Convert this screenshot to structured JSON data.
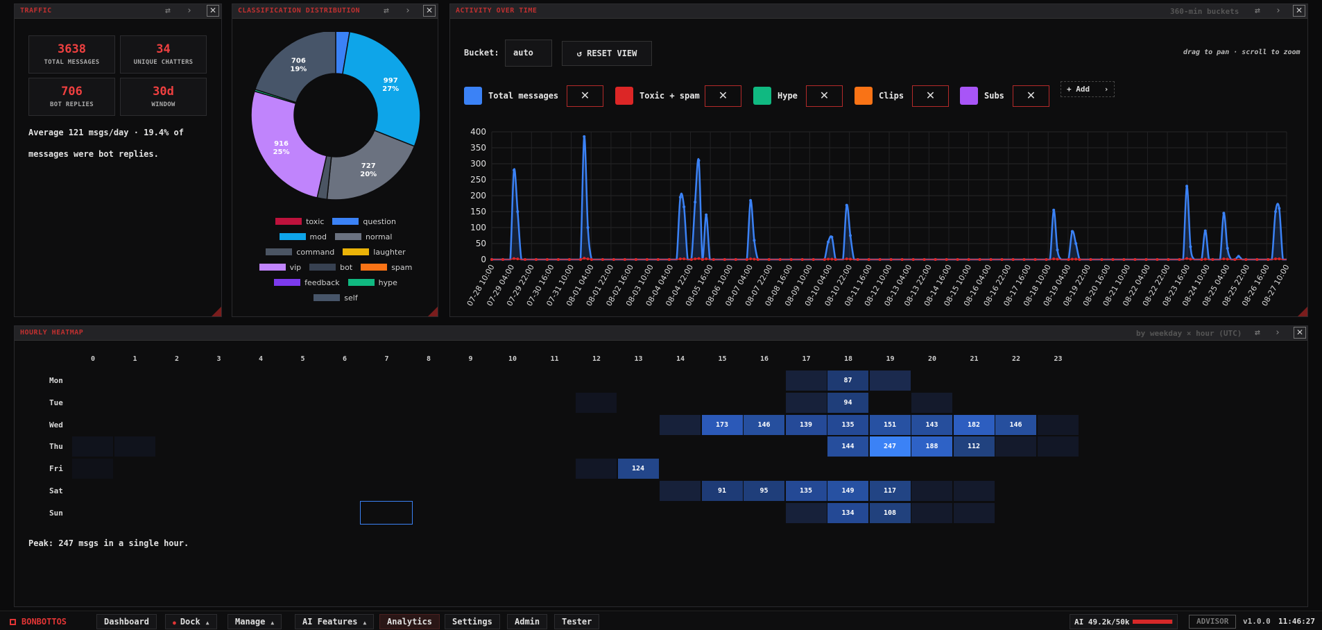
{
  "traffic": {
    "title": "TRAFFIC",
    "stats": [
      {
        "value": "3638",
        "label": "TOTAL MESSAGES"
      },
      {
        "value": "34",
        "label": "UNIQUE CHATTERS"
      },
      {
        "value": "706",
        "label": "BOT REPLIES"
      },
      {
        "value": "30d",
        "label": "WINDOW"
      }
    ],
    "summary_line1": "Average 121 msgs/day · 19.4% of",
    "summary_line2": "messages were bot replies."
  },
  "classification": {
    "title": "CLASSIFICATION DISTRIBUTION",
    "slices": [
      {
        "name": "question",
        "value": 93,
        "color": "#3b82f6",
        "label": ""
      },
      {
        "name": "mod",
        "value": 997,
        "color": "#0ea5e9",
        "label": "997",
        "pct": "27%"
      },
      {
        "name": "normal",
        "value": 727,
        "color": "#6b7280",
        "label": "727",
        "pct": "20%"
      },
      {
        "name": "command",
        "value": 66,
        "color": "#4b5563",
        "label": ""
      },
      {
        "name": "vip",
        "value": 916,
        "color": "#c084fc",
        "label": "916",
        "pct": "25%"
      },
      {
        "name": "hype",
        "value": 13,
        "color": "#10b981",
        "label": ""
      },
      {
        "name": "self",
        "value": 706,
        "color": "#475569",
        "label": "706",
        "pct": "19%"
      }
    ],
    "legend": [
      {
        "name": "toxic",
        "color": "#be123c"
      },
      {
        "name": "question",
        "color": "#3b82f6"
      },
      {
        "name": "mod",
        "color": "#0ea5e9"
      },
      {
        "name": "normal",
        "color": "#6b7280"
      },
      {
        "name": "command",
        "color": "#4b5563"
      },
      {
        "name": "laughter",
        "color": "#eab308"
      },
      {
        "name": "vip",
        "color": "#c084fc"
      },
      {
        "name": "bot",
        "color": "#374151"
      },
      {
        "name": "spam",
        "color": "#f97316"
      },
      {
        "name": "feedback",
        "color": "#7c3aed"
      },
      {
        "name": "hype",
        "color": "#10b981"
      },
      {
        "name": "self",
        "color": "#475569"
      }
    ]
  },
  "activity": {
    "title": "ACTIVITY OVER TIME",
    "subtitle": "360-min buckets",
    "bucket_label": "Bucket:",
    "bucket_value": "auto",
    "reset_label": "↺ RESET VIEW",
    "hint": "drag to pan · scroll to zoom",
    "add_label": "+ Add",
    "series_toggles": [
      {
        "name": "Total messages",
        "color": "#3b82f6"
      },
      {
        "name": "Toxic + spam",
        "color": "#dc2626"
      },
      {
        "name": "Hype",
        "color": "#10b981"
      },
      {
        "name": "Clips",
        "color": "#f97316"
      },
      {
        "name": "Subs",
        "color": "#a855f7"
      }
    ]
  },
  "chart_data": {
    "type": "line",
    "ylim": [
      0,
      400
    ],
    "yticks": [
      "0",
      "50",
      "100",
      "150",
      "200",
      "250",
      "300",
      "350",
      "400"
    ],
    "x_tick_labels": [
      "07-28 10:00",
      "07-29 04:00",
      "07-29 22:00",
      "07-30 16:00",
      "07-31 10:00",
      "08-01 04:00",
      "08-01 22:00",
      "08-02 16:00",
      "08-03 10:00",
      "08-04 04:00",
      "08-04 22:00",
      "08-05 16:00",
      "08-06 10:00",
      "08-07 04:00",
      "08-07 22:00",
      "08-08 16:00",
      "08-09 10:00",
      "08-10 04:00",
      "08-10 22:00",
      "08-11 16:00",
      "08-12 10:00",
      "08-13 04:00",
      "08-13 22:00",
      "08-14 16:00",
      "08-15 10:00",
      "08-16 04:00",
      "08-16 22:00",
      "08-17 16:00",
      "08-18 10:00",
      "08-19 04:00",
      "08-19 22:00",
      "08-20 16:00",
      "08-21 10:00",
      "08-22 04:00",
      "08-22 22:00",
      "08-23 16:00",
      "08-24 10:00",
      "08-25 04:00",
      "08-25 22:00",
      "08-26 16:00",
      "08-27 10:00"
    ],
    "series": [
      {
        "name": "Total messages",
        "color": "#3b82f6",
        "values": [
          0,
          0,
          0,
          0,
          0,
          0,
          280,
          150,
          0,
          0,
          0,
          0,
          0,
          0,
          0,
          0,
          0,
          0,
          0,
          0,
          0,
          0,
          0,
          0,
          0,
          385,
          100,
          0,
          0,
          0,
          0,
          0,
          0,
          0,
          0,
          0,
          0,
          0,
          0,
          0,
          0,
          0,
          0,
          0,
          0,
          0,
          0,
          0,
          0,
          0,
          0,
          195,
          165,
          0,
          0,
          180,
          310,
          0,
          140,
          0,
          0,
          0,
          0,
          0,
          0,
          0,
          0,
          0,
          0,
          0,
          185,
          60,
          0,
          0,
          0,
          0,
          0,
          0,
          0,
          0,
          0,
          0,
          0,
          0,
          0,
          0,
          0,
          0,
          0,
          0,
          0,
          55,
          70,
          0,
          0,
          0,
          170,
          75,
          0,
          0,
          0,
          0,
          0,
          0,
          0,
          0,
          0,
          0,
          0,
          0,
          0,
          0,
          0,
          0,
          0,
          0,
          0,
          0,
          0,
          0,
          0,
          0,
          0,
          0,
          0,
          0,
          0,
          0,
          0,
          0,
          0,
          0,
          0,
          0,
          0,
          0,
          0,
          0,
          0,
          0,
          0,
          0,
          0,
          0,
          0,
          0,
          0,
          0,
          0,
          0,
          0,
          0,
          155,
          30,
          0,
          0,
          0,
          88,
          50,
          0,
          0,
          0,
          0,
          0,
          0,
          0,
          0,
          0,
          0,
          0,
          0,
          0,
          0,
          0,
          0,
          0,
          0,
          0,
          0,
          0,
          0,
          0,
          0,
          0,
          0,
          0,
          0,
          0,
          230,
          40,
          0,
          0,
          0,
          90,
          0,
          0,
          0,
          0,
          145,
          35,
          0,
          0,
          10,
          0,
          0,
          0,
          0,
          0,
          0,
          0,
          0,
          0,
          150,
          160,
          0,
          0
        ]
      },
      {
        "name": "Toxic + spam",
        "color": "#dc2626",
        "values": [
          0,
          0,
          0,
          0,
          0,
          0,
          3,
          2,
          0,
          0,
          0,
          0,
          0,
          0,
          0,
          0,
          0,
          0,
          0,
          0,
          0,
          0,
          0,
          0,
          0,
          4,
          2,
          0,
          0,
          0,
          0,
          0,
          0,
          0,
          0,
          0,
          0,
          0,
          0,
          0,
          0,
          0,
          0,
          0,
          0,
          0,
          0,
          0,
          0,
          0,
          0,
          2,
          2,
          0,
          0,
          2,
          3,
          0,
          2,
          0,
          0,
          0,
          0,
          0,
          0,
          0,
          0,
          0,
          0,
          0,
          2,
          1,
          0,
          0,
          0,
          0,
          0,
          0,
          0,
          0,
          0,
          0,
          0,
          0,
          0,
          0,
          0,
          0,
          0,
          0,
          0,
          1,
          1,
          0,
          0,
          0,
          2,
          1,
          0,
          0,
          0,
          0,
          0,
          0,
          0,
          0,
          0,
          0,
          0,
          0,
          0,
          0,
          0,
          0,
          0,
          0,
          0,
          0,
          0,
          0,
          0,
          0,
          0,
          0,
          0,
          0,
          0,
          0,
          0,
          0,
          0,
          0,
          0,
          0,
          0,
          0,
          0,
          0,
          0,
          0,
          0,
          0,
          0,
          0,
          0,
          0,
          0,
          0,
          0,
          0,
          0,
          0,
          2,
          1,
          0,
          0,
          0,
          1,
          1,
          0,
          0,
          0,
          0,
          0,
          0,
          0,
          0,
          0,
          0,
          0,
          0,
          0,
          0,
          0,
          0,
          0,
          0,
          0,
          0,
          0,
          0,
          0,
          0,
          0,
          0,
          0,
          0,
          0,
          3,
          1,
          0,
          0,
          0,
          1,
          0,
          0,
          0,
          0,
          2,
          1,
          0,
          0,
          0,
          0,
          0,
          0,
          0,
          0,
          0,
          0,
          0,
          0,
          2,
          2,
          0,
          0
        ]
      }
    ]
  },
  "heatmap": {
    "title": "HOURLY HEATMAP",
    "subtitle": "by weekday × hour (UTC)",
    "hours": [
      "0",
      "1",
      "2",
      "3",
      "4",
      "5",
      "6",
      "7",
      "8",
      "9",
      "10",
      "11",
      "12",
      "13",
      "14",
      "15",
      "16",
      "17",
      "18",
      "19",
      "20",
      "21",
      "22",
      "23"
    ],
    "days": [
      "Mon",
      "Tue",
      "Wed",
      "Thu",
      "Fri",
      "Sat",
      "Sun"
    ],
    "cells": [
      {
        "day": 0,
        "hour": 17,
        "value": "",
        "color": "#17213a"
      },
      {
        "day": 0,
        "hour": 18,
        "value": "87",
        "color": "#1e3a72"
      },
      {
        "day": 0,
        "hour": 19,
        "value": "",
        "color": "#1b2a4e"
      },
      {
        "day": 1,
        "hour": 12,
        "value": "",
        "color": "#111420"
      },
      {
        "day": 1,
        "hour": 17,
        "value": "",
        "color": "#17213a"
      },
      {
        "day": 1,
        "hour": 18,
        "value": "94",
        "color": "#1f3e7a"
      },
      {
        "day": 1,
        "hour": 20,
        "value": "",
        "color": "#141a2c"
      },
      {
        "day": 2,
        "hour": 14,
        "value": "",
        "color": "#17213a"
      },
      {
        "day": 2,
        "hour": 15,
        "value": "173",
        "color": "#2b59b8"
      },
      {
        "day": 2,
        "hour": 16,
        "value": "146",
        "color": "#264f9e"
      },
      {
        "day": 2,
        "hour": 17,
        "value": "139",
        "color": "#254a98"
      },
      {
        "day": 2,
        "hour": 18,
        "value": "135",
        "color": "#244995"
      },
      {
        "day": 2,
        "hour": 19,
        "value": "151",
        "color": "#2751a2"
      },
      {
        "day": 2,
        "hour": 20,
        "value": "143",
        "color": "#264e9c"
      },
      {
        "day": 2,
        "hour": 21,
        "value": "182",
        "color": "#2d5ec0"
      },
      {
        "day": 2,
        "hour": 22,
        "value": "146",
        "color": "#264f9e"
      },
      {
        "day": 2,
        "hour": 23,
        "value": "",
        "color": "#121726"
      },
      {
        "day": 3,
        "hour": 0,
        "value": "",
        "color": "#10131c"
      },
      {
        "day": 3,
        "hour": 1,
        "value": "",
        "color": "#10131c"
      },
      {
        "day": 3,
        "hour": 18,
        "value": "144",
        "color": "#264e9d"
      },
      {
        "day": 3,
        "hour": 19,
        "value": "247",
        "color": "#3b82f6"
      },
      {
        "day": 3,
        "hour": 20,
        "value": "188",
        "color": "#2e62c6"
      },
      {
        "day": 3,
        "hour": 21,
        "value": "112",
        "color": "#21427f"
      },
      {
        "day": 3,
        "hour": 22,
        "value": "",
        "color": "#141a2c"
      },
      {
        "day": 3,
        "hour": 23,
        "value": "",
        "color": "#121726"
      },
      {
        "day": 4,
        "hour": 0,
        "value": "",
        "color": "#0f1118"
      },
      {
        "day": 4,
        "hour": 12,
        "value": "",
        "color": "#121726"
      },
      {
        "day": 4,
        "hour": 13,
        "value": "124",
        "color": "#23468a"
      },
      {
        "day": 5,
        "hour": 14,
        "value": "",
        "color": "#17213a"
      },
      {
        "day": 5,
        "hour": 15,
        "value": "91",
        "color": "#1e3b76"
      },
      {
        "day": 5,
        "hour": 16,
        "value": "95",
        "color": "#1f3e7a"
      },
      {
        "day": 5,
        "hour": 17,
        "value": "135",
        "color": "#244995"
      },
      {
        "day": 5,
        "hour": 18,
        "value": "149",
        "color": "#2751a2"
      },
      {
        "day": 5,
        "hour": 19,
        "value": "117",
        "color": "#224484"
      },
      {
        "day": 5,
        "hour": 20,
        "value": "",
        "color": "#141a2c"
      },
      {
        "day": 5,
        "hour": 21,
        "value": "",
        "color": "#141a2c"
      },
      {
        "day": 6,
        "hour": 17,
        "value": "",
        "color": "#17213a"
      },
      {
        "day": 6,
        "hour": 18,
        "value": "134",
        "color": "#244995"
      },
      {
        "day": 6,
        "hour": 19,
        "value": "108",
        "color": "#21417d"
      },
      {
        "day": 6,
        "hour": 20,
        "value": "",
        "color": "#141a2c"
      },
      {
        "day": 6,
        "hour": 21,
        "value": "",
        "color": "#141a2c"
      }
    ],
    "selected": {
      "day": 6,
      "hour": 7
    },
    "peak_text": "Peak: 247 msgs in a single hour."
  },
  "taskbar": {
    "brand": "BONBOTTOS",
    "items": [
      "Dashboard",
      "Dock",
      "Manage",
      "AI Features",
      "Analytics",
      "Settings",
      "Admin",
      "Tester"
    ],
    "ai_usage": "AI 49.2k/50k",
    "ai_usage_fraction": 0.98,
    "advisor": "ADVISOR",
    "version": "v1.0.0",
    "clock": "11:46:27"
  },
  "icons": {
    "swap": "swap-icon",
    "next": "chevron-right-icon",
    "close": "close-icon",
    "triangle": "triangle-up-icon"
  }
}
